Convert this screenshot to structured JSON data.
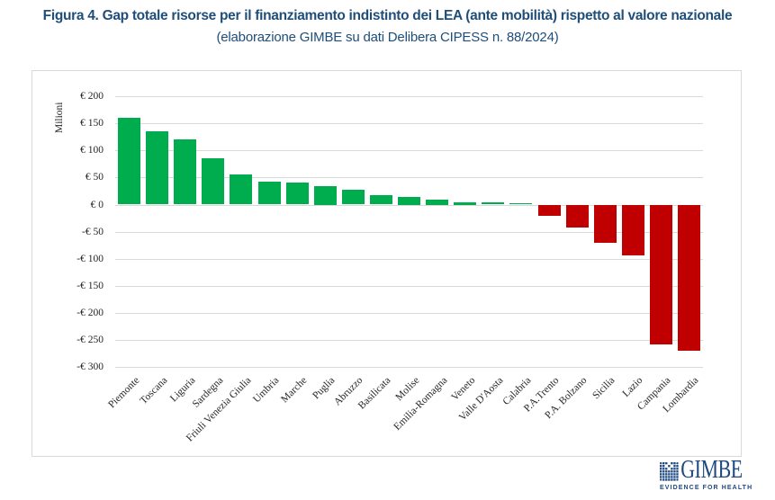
{
  "title": "Figura 4. Gap totale risorse per il finanziamento indistinto dei LEA (ante mobilità) rispetto al valore nazionale",
  "subtitle": "(elaborazione GIMBE su dati Delibera CIPESS n. 88/2024)",
  "colors": {
    "title_blue": "#1F4E79",
    "positive_green": "#00AD4E",
    "negative_red": "#C00000",
    "gridline_gray": "#D9D9D9",
    "axis_text": "#262626",
    "logo_blue": "#1D4880"
  },
  "chart_data": {
    "type": "bar",
    "title": "",
    "xlabel": "",
    "ylabel": "Milioni",
    "units": "€",
    "grid": true,
    "legend": false,
    "ylim": [
      -300,
      200
    ],
    "tick_values": [
      200,
      150,
      100,
      50,
      0,
      -50,
      -100,
      -150,
      -200,
      -250,
      -300
    ],
    "tick_labels": [
      "€ 200",
      "€ 150",
      "€ 100",
      "€ 50",
      "€ 0",
      "-€ 50",
      "-€ 100",
      "-€ 150",
      "-€ 200",
      "-€ 250",
      "-€ 300"
    ],
    "categories": [
      "Piemonte",
      "Toscana",
      "Liguria",
      "Sardegna",
      "Friuli Venezia Giulia",
      "Umbria",
      "Marche",
      "Puglia",
      "Abruzzo",
      "Basilicata",
      "Molise",
      "Emilia-Romagna",
      "Veneto",
      "Valle D'Aosta",
      "Calabria",
      "P.A.Trento",
      "P.A. Bolzano",
      "Sicilia",
      "Lazio",
      "Campania",
      "Lombardia"
    ],
    "values": [
      160,
      135,
      120,
      85,
      55,
      43,
      40,
      34,
      27,
      17,
      15,
      10,
      5,
      4,
      3,
      -20,
      -43,
      -71,
      -93,
      -258,
      -270
    ]
  },
  "logo": {
    "name": "GIMBE",
    "tagline": "EVIDENCE FOR HEALTH"
  }
}
